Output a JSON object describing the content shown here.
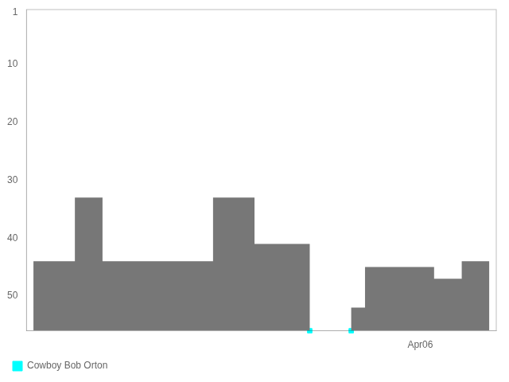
{
  "chart_data": {
    "type": "line",
    "categories": [
      null,
      null,
      null,
      null,
      null,
      null,
      null,
      null,
      null,
      null,
      null,
      null,
      null,
      null,
      null,
      null,
      null,
      null,
      null,
      null,
      null,
      null,
      null,
      null,
      null,
      null,
      null,
      null,
      "Apr06",
      null,
      null,
      null,
      null,
      null
    ],
    "series": [
      {
        "type": "area",
        "color": "#777777",
        "values": [
          44,
          44,
          44,
          33,
          33,
          44,
          44,
          44,
          44,
          44,
          44,
          44,
          44,
          33,
          33,
          33,
          41,
          41,
          41,
          41,
          56,
          56,
          56,
          52,
          45,
          45,
          45,
          45,
          45,
          47,
          47,
          44,
          44,
          44
        ]
      },
      {
        "name": "Cowboy Bob Orton",
        "type": "scatter",
        "marker": "square",
        "color": "#00ffff",
        "values": [
          null,
          null,
          null,
          null,
          null,
          null,
          null,
          null,
          null,
          null,
          null,
          null,
          null,
          null,
          null,
          null,
          null,
          null,
          null,
          null,
          56,
          null,
          null,
          56,
          null,
          null,
          null,
          null,
          null,
          null,
          null,
          null,
          null,
          null
        ]
      }
    ],
    "ylim": [
      56,
      0.5
    ],
    "yticks": [
      1,
      10,
      20,
      30,
      40,
      50
    ],
    "grid": false,
    "legend": "lower left"
  }
}
